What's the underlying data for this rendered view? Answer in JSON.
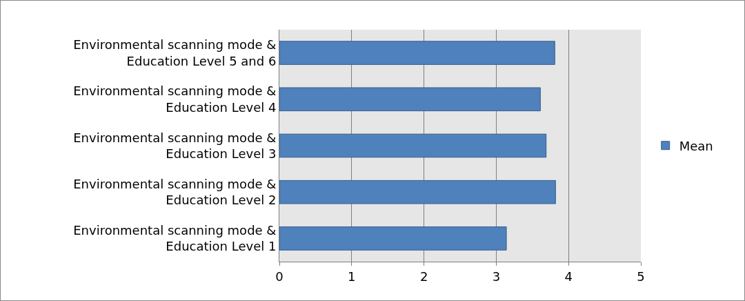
{
  "chart_data": {
    "type": "bar",
    "orientation": "horizontal",
    "categories": [
      "Environmental scanning mode & Education Level 5 and 6",
      "Environmental scanning mode & Education Level 4",
      "Environmental scanning mode & Education Level 3",
      "Environmental scanning mode & Education Level 2",
      "Environmental scanning mode & Education Level 1"
    ],
    "series": [
      {
        "name": "Mean",
        "color": "#4f81bd",
        "values": [
          3.81,
          3.61,
          3.69,
          3.82,
          3.14
        ]
      }
    ],
    "xlim": [
      0,
      5
    ],
    "xticks": [
      0,
      1,
      2,
      3,
      4,
      5
    ],
    "grid": "x",
    "legend": "right"
  }
}
